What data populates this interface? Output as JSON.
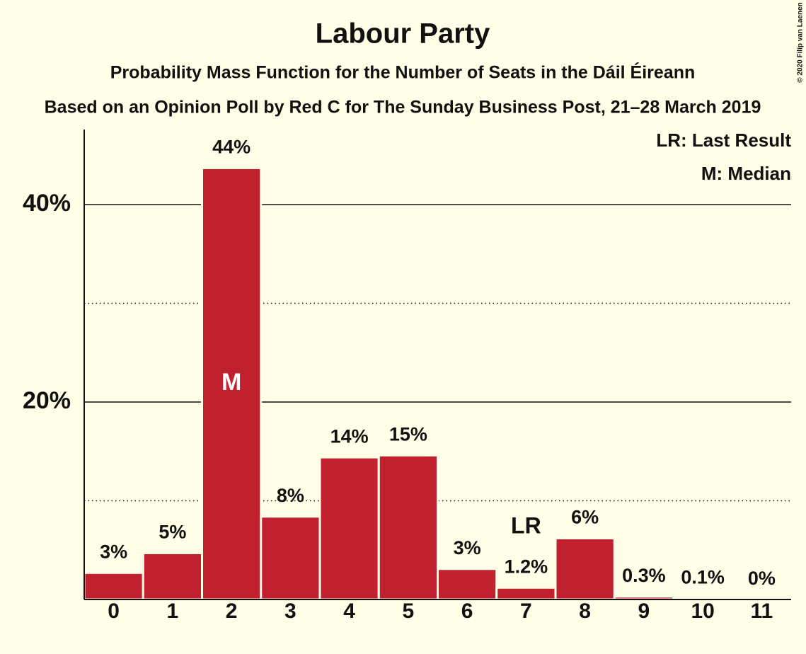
{
  "chart_data": {
    "type": "bar",
    "title": "Labour Party",
    "subtitle": "Probability Mass Function for the Number of Seats in the Dáil Éireann",
    "subtitle2": "Based on an Opinion Poll by Red C for The Sunday Business Post, 21–28 March 2019",
    "copyright": "© 2020 Filip van Laenen",
    "legend": [
      "LR: Last Result",
      "M: Median"
    ],
    "categories": [
      "0",
      "1",
      "2",
      "3",
      "4",
      "5",
      "6",
      "7",
      "8",
      "9",
      "10",
      "11"
    ],
    "values": [
      2.7,
      4.7,
      43.7,
      8.4,
      14.4,
      14.6,
      3.1,
      1.2,
      6.2,
      0.3,
      0.1,
      0
    ],
    "value_labels": [
      "3%",
      "5%",
      "44%",
      "8%",
      "14%",
      "15%",
      "3%",
      "1.2%",
      "6%",
      "0.3%",
      "0.1%",
      "0%"
    ],
    "color": "#c1202f",
    "median": 2,
    "median_label": "M",
    "last_result": 7,
    "last_result_label": "LR",
    "ylim": [
      0,
      47.6
    ],
    "yticks": [
      {
        "value": 20,
        "label": "20%"
      },
      {
        "value": 40,
        "label": "40%"
      }
    ],
    "minor_gridlines": [
      10,
      30
    ],
    "grid": true
  }
}
